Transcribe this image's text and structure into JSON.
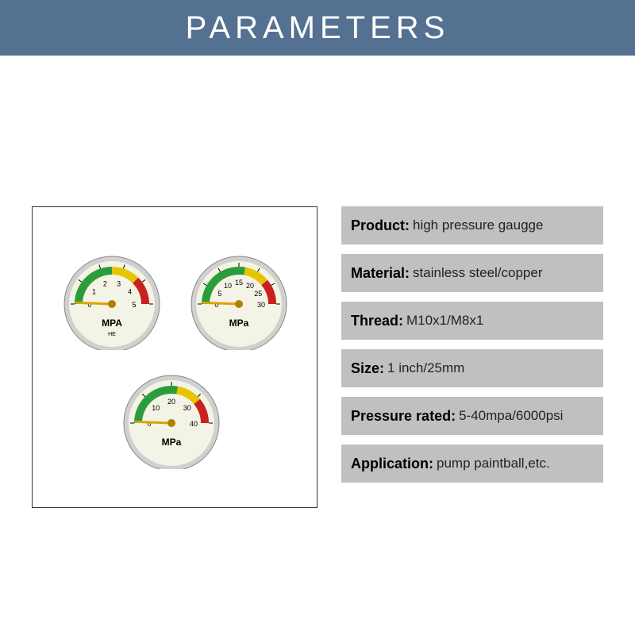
{
  "header": {
    "title": "PARAMETERS",
    "bg_color": "#547191",
    "text_color": "#ffffff",
    "font_size": 40,
    "letter_spacing": 6
  },
  "specs": [
    {
      "label": "Product:",
      "value": "high pressure gaugge"
    },
    {
      "label": "Material:",
      "value": "stainless steel/copper"
    },
    {
      "label": "Thread:",
      "value": "M10x1/M8x1"
    },
    {
      "label": "Size:",
      "value": "1 inch/25mm"
    },
    {
      "label": "Pressure rated:",
      "value": "5-40mpa/6000psi"
    },
    {
      "label": "Application:",
      "value": "pump paintball,etc."
    }
  ],
  "spec_row_bg": "#c0c0c0",
  "gauges": [
    {
      "unit_label": "MPA",
      "sub_label": "HE",
      "ticks": [
        "0",
        "1",
        "2",
        "3",
        "4",
        "5"
      ],
      "arc": {
        "start_deg": 180,
        "end_deg": 0,
        "zones": [
          {
            "from": 180,
            "to": 140,
            "color": "#2a9d3a"
          },
          {
            "from": 140,
            "to": 90,
            "color": "#2a9d3a"
          },
          {
            "from": 90,
            "to": 45,
            "color": "#e6c400"
          },
          {
            "from": 45,
            "to": 0,
            "color": "#c92020"
          }
        ]
      },
      "needle_angle": 178,
      "face_color": "#f3f3e6",
      "rim_color": "#d0d0d0"
    },
    {
      "unit_label": "MPa",
      "sub_label": "",
      "ticks": [
        "0",
        "5",
        "10",
        "15",
        "20",
        "25",
        "30"
      ],
      "arc": {
        "start_deg": 180,
        "end_deg": 0,
        "zones": [
          {
            "from": 180,
            "to": 130,
            "color": "#2a9d3a"
          },
          {
            "from": 130,
            "to": 80,
            "color": "#2a9d3a"
          },
          {
            "from": 80,
            "to": 40,
            "color": "#e6c400"
          },
          {
            "from": 40,
            "to": 0,
            "color": "#c92020"
          }
        ]
      },
      "needle_angle": 178,
      "face_color": "#f3f3e6",
      "rim_color": "#d0d0d0"
    },
    {
      "unit_label": "MPa",
      "sub_label": "",
      "ticks": [
        "0",
        "10",
        "20",
        "30",
        "40"
      ],
      "arc": {
        "start_deg": 180,
        "end_deg": 0,
        "zones": [
          {
            "from": 180,
            "to": 130,
            "color": "#2a9d3a"
          },
          {
            "from": 130,
            "to": 80,
            "color": "#2a9d3a"
          },
          {
            "from": 80,
            "to": 40,
            "color": "#e6c400"
          },
          {
            "from": 40,
            "to": 0,
            "color": "#c92020"
          }
        ]
      },
      "needle_angle": 178,
      "face_color": "#f3f3e6",
      "rim_color": "#d0d0d0"
    }
  ]
}
